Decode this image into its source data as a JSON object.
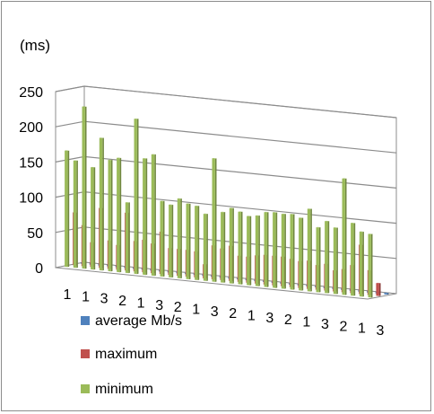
{
  "chart_data": {
    "type": "bar",
    "title": "",
    "ylabel": "(ms)",
    "ylim": [
      0,
      250
    ],
    "y_ticks": [
      "250",
      "200",
      "150",
      "100",
      "50",
      "0"
    ],
    "x_tick_labels": [
      "1",
      "1",
      "3",
      "2",
      "1",
      "3",
      "2",
      "1",
      "3",
      "2",
      "1",
      "3",
      "2",
      "1",
      "3",
      "2",
      "1",
      "3"
    ],
    "grid": true,
    "legend_position": "bottom",
    "series": [
      {
        "name": "average Mb/s",
        "color": "#4f81bd",
        "values": [
          2,
          2,
          2,
          2,
          2,
          2,
          2,
          2,
          2,
          2,
          2,
          2,
          2,
          2,
          2,
          2,
          2,
          2,
          2,
          2,
          2,
          2,
          2,
          2,
          2,
          2,
          2,
          2,
          2,
          2,
          2,
          2,
          2,
          2,
          2,
          2
        ]
      },
      {
        "name": "maximum",
        "color": "#c0504d",
        "values": [
          75,
          58,
          35,
          85,
          40,
          35,
          82,
          43,
          46,
          42,
          60,
          38,
          38,
          38,
          37,
          20,
          48,
          45,
          50,
          37,
          37,
          40,
          42,
          42,
          42,
          40,
          38,
          40,
          35,
          38,
          30,
          33,
          40,
          70,
          35,
          18
        ]
      },
      {
        "name": "minimum",
        "color": "#9bbb59",
        "values": [
          165,
          152,
          230,
          145,
          188,
          158,
          162,
          100,
          220,
          165,
          172,
          107,
          103,
          113,
          107,
          105,
          95,
          175,
          100,
          107,
          103,
          98,
          100,
          106,
          107,
          106,
          107,
          103,
          117,
          92,
          102,
          94,
          165,
          103,
          92,
          90
        ]
      }
    ]
  }
}
